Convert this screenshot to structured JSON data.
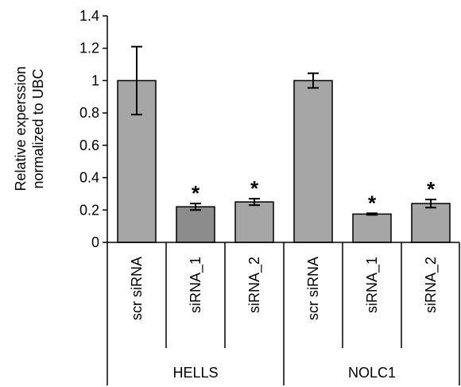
{
  "chart_data": {
    "type": "bar",
    "ylabel_lines": [
      "Relative experssion",
      "normalized to UBC"
    ],
    "ylim": [
      0,
      1.4
    ],
    "yticks": [
      "0",
      "0.2",
      "0.4",
      "0.6",
      "0.8",
      "1",
      "1.2",
      "1.4"
    ],
    "grid": false,
    "groups": [
      {
        "name": "HELLS",
        "bars": [
          {
            "label": "scr siRNA",
            "value": 1.0,
            "error": 0.21,
            "significant": false,
            "color": "#a6a6a6"
          },
          {
            "label": "siRNA_1",
            "value": 0.22,
            "error": 0.02,
            "significant": true,
            "color": "#8c8c8c"
          },
          {
            "label": "siRNA_2",
            "value": 0.25,
            "error": 0.02,
            "significant": true,
            "color": "#a6a6a6"
          }
        ]
      },
      {
        "name": "NOLC1",
        "bars": [
          {
            "label": "scr siRNA",
            "value": 1.0,
            "error": 0.045,
            "significant": false,
            "color": "#a6a6a6"
          },
          {
            "label": "siRNA_1",
            "value": 0.175,
            "error": 0.005,
            "significant": true,
            "color": "#a6a6a6"
          },
          {
            "label": "siRNA_2",
            "value": 0.24,
            "error": 0.025,
            "significant": true,
            "color": "#a6a6a6"
          }
        ]
      }
    ],
    "significance_marker": "*"
  }
}
